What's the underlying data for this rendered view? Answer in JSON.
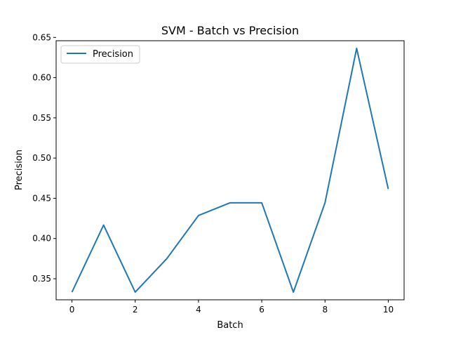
{
  "chart_data": {
    "type": "line",
    "title": "SVM - Batch vs Precision",
    "xlabel": "Batch",
    "ylabel": "Precision",
    "x": [
      0,
      1,
      2,
      3,
      4,
      5,
      6,
      7,
      8,
      9,
      10
    ],
    "series": [
      {
        "name": "Precision",
        "color": "#1f77b4",
        "values": [
          0.3333,
          0.4167,
          0.3333,
          0.375,
          0.4286,
          0.4444,
          0.4444,
          0.3333,
          0.4444,
          0.6364,
          0.4615
        ]
      }
    ],
    "xlim": [
      -0.5,
      10.5
    ],
    "ylim": [
      0.3238,
      0.6459
    ],
    "xticks": [
      0,
      2,
      4,
      6,
      8,
      10
    ],
    "yticks": [
      0.35,
      0.4,
      0.45,
      0.5,
      0.55,
      0.6,
      0.65
    ],
    "grid": false,
    "legend_position": "top-left"
  }
}
